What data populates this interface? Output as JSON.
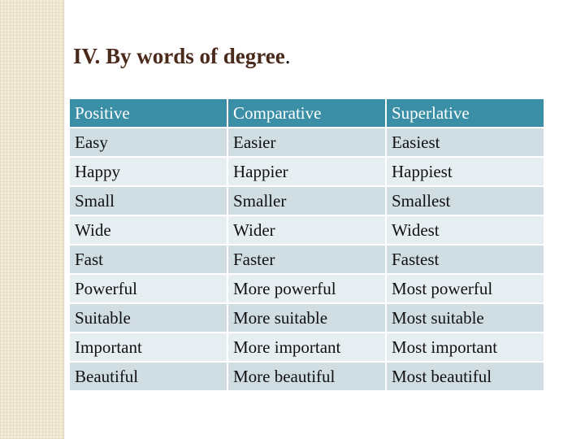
{
  "slide": {
    "title": "IV.  By words of degree",
    "title_suffix": "."
  },
  "table": {
    "headers": [
      "Positive",
      "Comparative",
      "Superlative"
    ],
    "rows": [
      [
        "Easy",
        "Easier",
        "Easiest"
      ],
      [
        "Happy",
        "Happier",
        "Happiest"
      ],
      [
        "Small",
        "Smaller",
        "Smallest"
      ],
      [
        "Wide",
        "Wider",
        "Widest"
      ],
      [
        "Fast",
        "Faster",
        "Fastest"
      ],
      [
        "Powerful",
        "More powerful",
        "Most powerful"
      ],
      [
        "Suitable",
        "More suitable",
        "Most suitable"
      ],
      [
        "Important",
        "More important",
        "Most important"
      ],
      [
        "Beautiful",
        "More beautiful",
        "Most beautiful"
      ]
    ]
  },
  "colors": {
    "header_bg": "#3a8fa7",
    "row_dark": "#d0dde3",
    "row_light": "#e7eef1",
    "title_color": "#4a2a1a",
    "band": "#f3ecd9"
  }
}
